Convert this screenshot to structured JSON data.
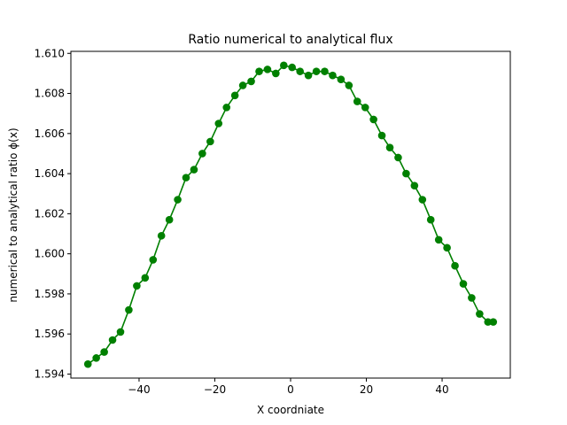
{
  "chart_data": {
    "type": "line",
    "title": "Ratio numerical to analytical flux",
    "xlabel": "X coordniate",
    "ylabel": "numerical to analytical ratio ϕ(x)",
    "xlim": [
      -58,
      58
    ],
    "ylim": [
      1.5938,
      1.6101
    ],
    "x_ticks": [
      -40,
      -20,
      0,
      20,
      40
    ],
    "x_tick_labels": [
      "−40",
      "−20",
      "0",
      "20",
      "40"
    ],
    "y_ticks": [
      1.594,
      1.596,
      1.598,
      1.6,
      1.602,
      1.604,
      1.606,
      1.608,
      1.61
    ],
    "y_tick_labels": [
      "1.594",
      "1.596",
      "1.598",
      "1.600",
      "1.602",
      "1.604",
      "1.606",
      "1.608",
      "1.610"
    ],
    "grid": false,
    "series": [
      {
        "color": "#008000",
        "marker": "circle",
        "x": [
          -53.5,
          -51.3,
          -49.2,
          -47.0,
          -44.9,
          -42.7,
          -40.6,
          -38.4,
          -36.3,
          -34.1,
          -32.0,
          -29.8,
          -27.6,
          -25.5,
          -23.3,
          -21.2,
          -19.0,
          -16.9,
          -14.7,
          -12.6,
          -10.4,
          -8.3,
          -6.1,
          -3.9,
          -1.8,
          0.4,
          2.5,
          4.7,
          6.8,
          9.0,
          11.1,
          13.3,
          15.4,
          17.6,
          19.7,
          21.9,
          24.1,
          26.2,
          28.4,
          30.5,
          32.7,
          34.8,
          37.0,
          39.1,
          41.3,
          43.4,
          45.6,
          47.8,
          49.9,
          52.1,
          53.5
        ],
        "y": [
          1.5945,
          1.5948,
          1.5951,
          1.5957,
          1.5961,
          1.5972,
          1.5984,
          1.5988,
          1.5997,
          1.6009,
          1.6017,
          1.6027,
          1.6038,
          1.6042,
          1.605,
          1.6056,
          1.6065,
          1.6073,
          1.6079,
          1.6084,
          1.6086,
          1.6091,
          1.6092,
          1.609,
          1.6094,
          1.6093,
          1.6091,
          1.6089,
          1.6091,
          1.6091,
          1.6089,
          1.6087,
          1.6084,
          1.6076,
          1.6073,
          1.6067,
          1.6059,
          1.6053,
          1.6048,
          1.604,
          1.6034,
          1.6027,
          1.6017,
          1.6007,
          1.6003,
          1.5994,
          1.5985,
          1.5978,
          1.597,
          1.5966,
          1.5966
        ]
      }
    ]
  }
}
